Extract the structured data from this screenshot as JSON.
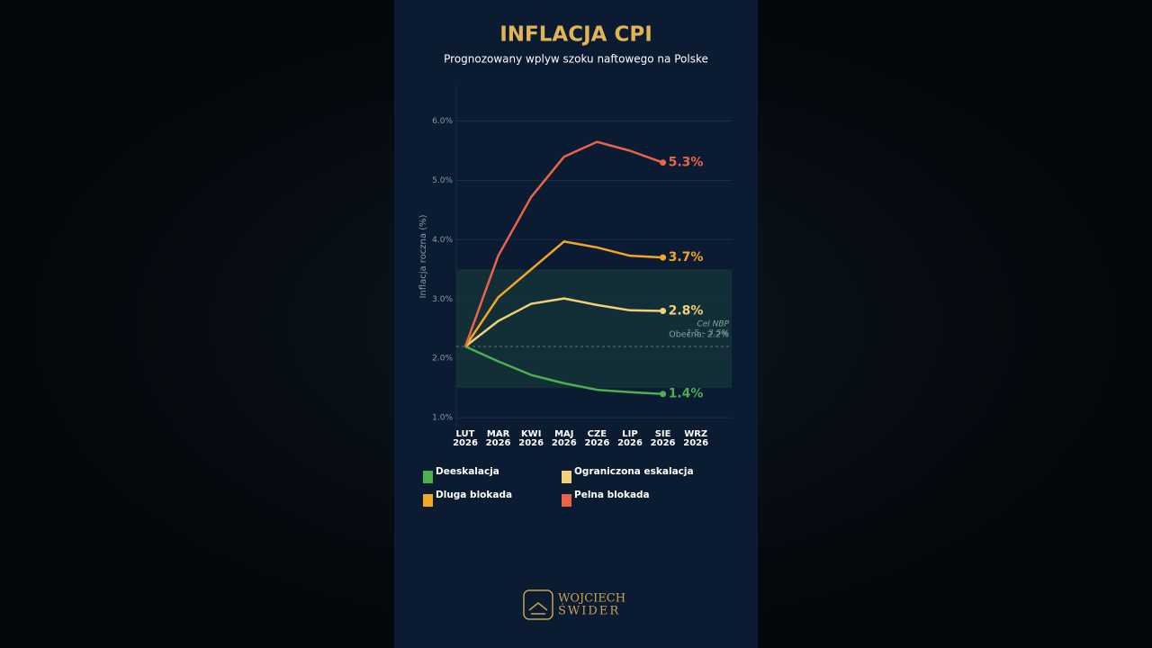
{
  "chart_data": {
    "type": "line",
    "title": "INFLACJA CPI",
    "subtitle": "Prognozowany wplyw szoku naftowego na Polske",
    "y_label": "Inflacja roczna (%)",
    "categories": [
      "LUT 2026",
      "MAR 2026",
      "KWI 2026",
      "MAJ 2026",
      "CZE 2026",
      "LIP 2026",
      "SIE 2026",
      "WRZ 2026"
    ],
    "series": [
      {
        "name": "Deeskalacja",
        "color": "#4caf50",
        "values": [
          2.2,
          1.95,
          1.72,
          1.58,
          1.47,
          1.43,
          1.4,
          null
        ],
        "end_label": "1.4%"
      },
      {
        "name": "Ograniczona eskalacja",
        "color": "#f0d078",
        "values": [
          2.2,
          2.63,
          2.92,
          3.01,
          2.9,
          2.81,
          2.8,
          null
        ],
        "end_label": "2.8%"
      },
      {
        "name": "Dluga blokada",
        "color": "#f5a623",
        "values": [
          2.2,
          3.03,
          3.5,
          3.97,
          3.87,
          3.73,
          3.7,
          null
        ],
        "end_label": "3.7%"
      },
      {
        "name": "Pelna blokada",
        "color": "#e8654a",
        "values": [
          2.2,
          3.73,
          4.72,
          5.4,
          5.65,
          5.5,
          5.3,
          null
        ],
        "end_label": "5.3%"
      }
    ],
    "ylim": [
      0.85,
      6.6
    ],
    "yticks": [
      {
        "value": 1,
        "label": "1.0%"
      },
      {
        "value": 2,
        "label": "2.0%"
      },
      {
        "value": 3,
        "label": "3.0%"
      },
      {
        "value": 4,
        "label": "4.0%"
      },
      {
        "value": 5,
        "label": "5.0%"
      },
      {
        "value": 6,
        "label": "6.0%"
      }
    ],
    "grid": true,
    "target_band": {
      "range": [
        1.5,
        3.5
      ],
      "title": "Cel NBP",
      "label": "1.5 – 3.5%"
    },
    "current": {
      "value": 2.2,
      "label": "Obecna: 2.2%"
    }
  },
  "logo": {
    "line1": "WOJCIECH",
    "line2": "ŚWIDER"
  }
}
